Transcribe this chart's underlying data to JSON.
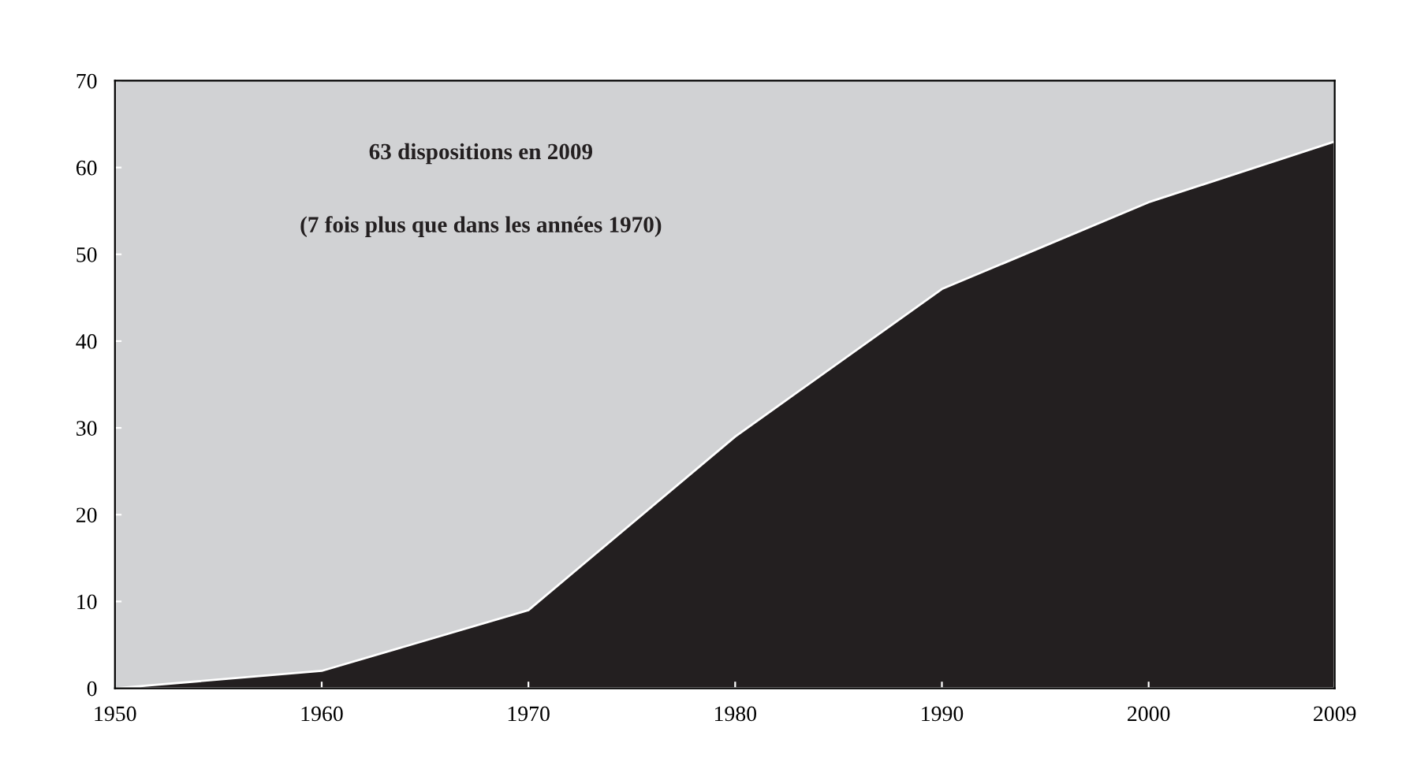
{
  "chart_data": {
    "type": "area",
    "x": [
      1950,
      1960,
      1970,
      1980,
      1990,
      2000,
      2009
    ],
    "series": [
      {
        "color": "#231f20",
        "values": [
          0,
          2,
          9,
          29,
          46,
          56,
          63
        ]
      }
    ],
    "xlim": [
      1950,
      2009
    ],
    "xticks": [
      1950,
      1960,
      1970,
      1980,
      1990,
      2000,
      2009
    ],
    "ylim": [
      0,
      70
    ],
    "yticks": [
      0,
      10,
      20,
      30,
      40,
      50,
      60,
      70
    ],
    "grid": false,
    "annotations": [
      "63 dispositions en 2009",
      "(7 fois plus que dans les années 1970)"
    ]
  }
}
